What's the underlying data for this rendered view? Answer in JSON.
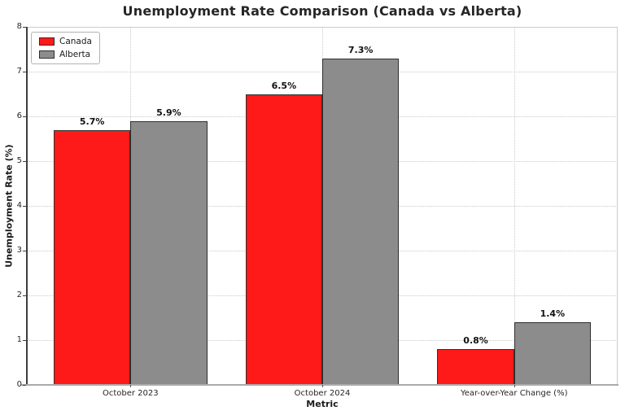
{
  "chart_data": {
    "type": "bar",
    "title": "Unemployment Rate Comparison (Canada vs Alberta)",
    "xlabel": "Metric",
    "ylabel": "Unemployment Rate (%)",
    "categories": [
      "October 2023",
      "October 2024",
      "Year-over-Year Change (%)"
    ],
    "series": [
      {
        "name": "Canada",
        "color": "#ff1a1a",
        "edge_color": "#2e2e2e",
        "values": [
          5.7,
          6.5,
          0.8
        ],
        "value_labels": [
          "5.7%",
          "6.5%",
          "0.8%"
        ]
      },
      {
        "name": "Alberta",
        "color": "#8c8c8c",
        "edge_color": "#2e2e2e",
        "values": [
          5.9,
          7.3,
          1.4
        ],
        "value_labels": [
          "5.9%",
          "7.3%",
          "1.4%"
        ]
      }
    ],
    "ylim": [
      0,
      8
    ],
    "yticks": [
      0,
      1,
      2,
      3,
      4,
      5,
      6,
      7,
      8
    ],
    "ytick_labels": [
      "0",
      "1",
      "2",
      "3",
      "4",
      "5",
      "6",
      "7",
      "8"
    ],
    "xlim": [
      -0.54,
      2.54
    ],
    "bar_width": 0.4,
    "grid": true,
    "grid_style": "dotted",
    "legend_position": "upper-left"
  }
}
